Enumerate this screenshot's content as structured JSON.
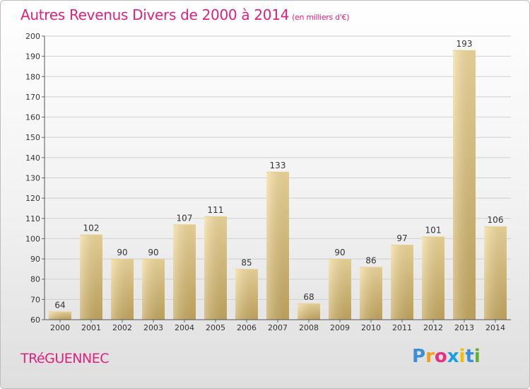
{
  "title": "Autres Revenus Divers de 2000 à 2014",
  "subtitle": "(en milliers d'€)",
  "town": "TRéGUENNEC",
  "logo": {
    "letters": [
      "P",
      "r",
      "o",
      "x",
      "i",
      "t",
      "i"
    ],
    "colors": [
      "#3a8fd8",
      "#f0a020",
      "#e83080",
      "#1aa0e0",
      "#f0c000",
      "#3a8fd8",
      "#60b030"
    ]
  },
  "colors": {
    "title": "#e0207e",
    "bar_light": "#f6dea0",
    "bar_dark": "#c9ac62"
  },
  "chart_data": {
    "type": "bar",
    "categories": [
      "2000",
      "2001",
      "2002",
      "2003",
      "2004",
      "2005",
      "2006",
      "2007",
      "2008",
      "2009",
      "2010",
      "2011",
      "2012",
      "2013",
      "2014"
    ],
    "values": [
      64,
      102,
      90,
      90,
      107,
      111,
      85,
      133,
      68,
      90,
      86,
      97,
      101,
      193,
      106
    ],
    "ylim": [
      60,
      200
    ],
    "yticks": [
      60,
      70,
      80,
      90,
      100,
      110,
      120,
      130,
      140,
      150,
      160,
      170,
      180,
      190,
      200
    ],
    "grid": true,
    "xlabel": "",
    "ylabel": ""
  }
}
